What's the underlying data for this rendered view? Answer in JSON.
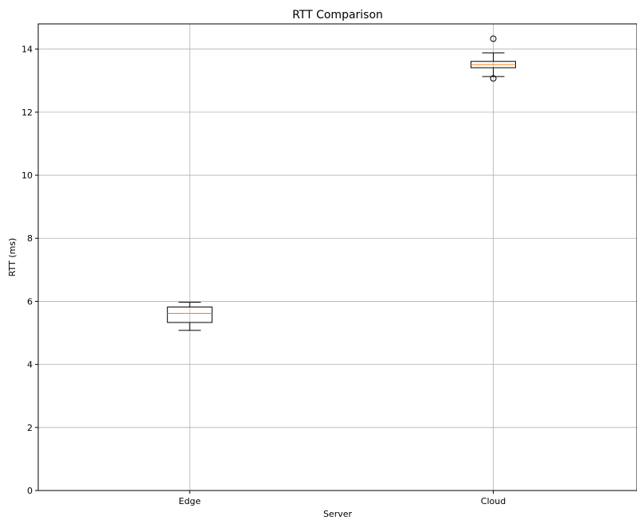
{
  "chart_data": {
    "type": "box",
    "title": "RTT Comparison",
    "xlabel": "Server",
    "ylabel": "RTT (ms)",
    "ylim": [
      0,
      14.8
    ],
    "yticks": [
      0,
      2,
      4,
      6,
      8,
      10,
      12,
      14
    ],
    "grid": true,
    "categories": [
      "Edge",
      "Cloud"
    ],
    "boxes": [
      {
        "category": "Edge",
        "whisker_low": 5.08,
        "q1": 5.33,
        "median": 5.62,
        "q3": 5.82,
        "whisker_high": 5.97,
        "outliers": []
      },
      {
        "category": "Cloud",
        "whisker_low": 13.13,
        "q1": 13.41,
        "median": 13.51,
        "q3": 13.61,
        "whisker_high": 13.88,
        "outliers": [
          14.33,
          13.07
        ]
      }
    ],
    "colors": {
      "box": "#000000",
      "median": "#ff7f0e",
      "grid": "#b0b0b0"
    }
  }
}
